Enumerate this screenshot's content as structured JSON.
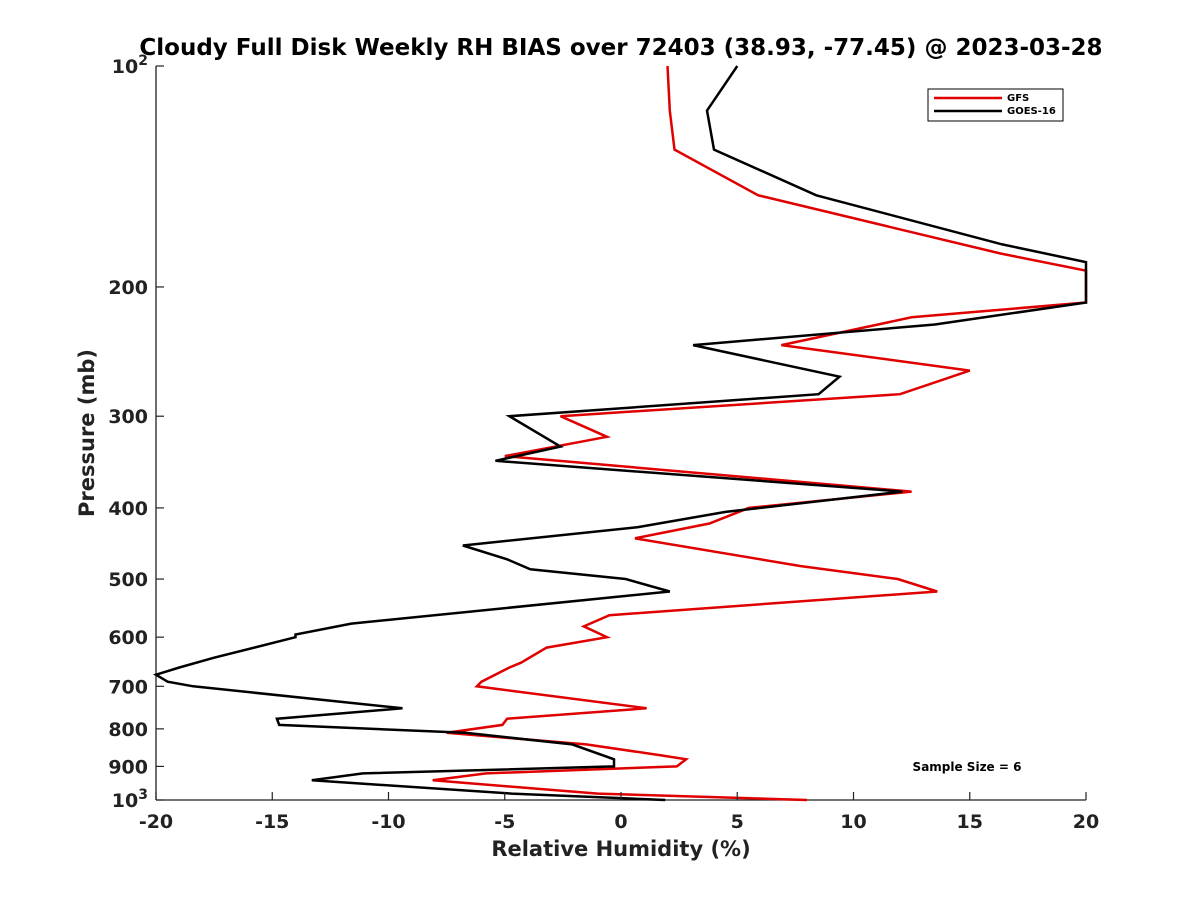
{
  "chart_data": {
    "type": "line",
    "title": "Cloudy Full Disk Weekly RH BIAS over 72403 (38.93, -77.45) @ 2023-03-28",
    "xlabel": "Relative Humidity (%)",
    "ylabel": "Pressure (mb)",
    "xlim": [
      -20,
      20
    ],
    "ylim": [
      1000,
      100
    ],
    "yscale": "log",
    "ytick_values": [
      100,
      200,
      300,
      400,
      500,
      600,
      700,
      800,
      900,
      1000
    ],
    "xtick_values": [
      -20,
      -15,
      -10,
      -5,
      0,
      5,
      10,
      15,
      20
    ],
    "y_base_ticks": {
      "100": {
        "base": "10",
        "exp": "2"
      },
      "1000": {
        "base": "10",
        "exp": "3"
      }
    },
    "ytick_labels": [
      "",
      "200",
      "300",
      "400",
      "500",
      "600",
      "700",
      "800",
      "900",
      ""
    ],
    "xtick_labels": [
      "-20",
      "-15",
      "-10",
      "-5",
      "0",
      "5",
      "10",
      "15",
      "20"
    ],
    "grid": false,
    "legend_position": "top-right",
    "annotation": "Sample Size = 6",
    "series": [
      {
        "name": "GFS",
        "color": "#e00000",
        "points": [
          [
            2.0,
            100
          ],
          [
            2.1,
            115
          ],
          [
            2.3,
            130
          ],
          [
            5.9,
            150
          ],
          [
            16.3,
            180
          ],
          [
            20.0,
            190
          ],
          [
            20.0,
            210
          ],
          [
            12.5,
            220
          ],
          [
            6.9,
            240
          ],
          [
            15.0,
            260
          ],
          [
            12.0,
            280
          ],
          [
            -2.6,
            300
          ],
          [
            -0.6,
            320
          ],
          [
            -5.0,
            340
          ],
          [
            12.5,
            380
          ],
          [
            5.5,
            400
          ],
          [
            3.8,
            420
          ],
          [
            0.6,
            440
          ],
          [
            7.7,
            480
          ],
          [
            11.9,
            500
          ],
          [
            13.6,
            520
          ],
          [
            -0.5,
            560
          ],
          [
            -1.6,
            580
          ],
          [
            -0.6,
            600
          ],
          [
            -3.2,
            620
          ],
          [
            -4.3,
            650
          ],
          [
            -4.8,
            660
          ],
          [
            -6.0,
            690
          ],
          [
            -6.2,
            700
          ],
          [
            1.1,
            750
          ],
          [
            -4.9,
            775
          ],
          [
            -5.1,
            790
          ],
          [
            -7.5,
            810
          ],
          [
            -1.5,
            840
          ],
          [
            1.8,
            870
          ],
          [
            2.8,
            880
          ],
          [
            2.4,
            900
          ],
          [
            -5.8,
            920
          ],
          [
            -8.1,
            940
          ],
          [
            -1.0,
            980
          ],
          [
            8.0,
            1000
          ]
        ]
      },
      {
        "name": "GOES-16",
        "color": "#000000",
        "points": [
          [
            5.0,
            100
          ],
          [
            3.7,
            115
          ],
          [
            4.0,
            130
          ],
          [
            8.4,
            150
          ],
          [
            16.4,
            175
          ],
          [
            20.0,
            185
          ],
          [
            20.0,
            210
          ],
          [
            13.5,
            225
          ],
          [
            3.1,
            240
          ],
          [
            9.4,
            265
          ],
          [
            8.5,
            280
          ],
          [
            -4.8,
            300
          ],
          [
            -2.6,
            330
          ],
          [
            -5.4,
            345
          ],
          [
            12.1,
            380
          ],
          [
            4.5,
            405
          ],
          [
            0.7,
            425
          ],
          [
            -6.8,
            450
          ],
          [
            -4.9,
            470
          ],
          [
            -3.9,
            485
          ],
          [
            0.2,
            500
          ],
          [
            2.1,
            520
          ],
          [
            -11.6,
            575
          ],
          [
            -14.0,
            595
          ],
          [
            -14.0,
            600
          ],
          [
            -17.5,
            640
          ],
          [
            -19.0,
            660
          ],
          [
            -20.0,
            675
          ],
          [
            -19.5,
            690
          ],
          [
            -18.4,
            700
          ],
          [
            -9.4,
            750
          ],
          [
            -14.8,
            775
          ],
          [
            -14.7,
            790
          ],
          [
            -6.7,
            810
          ],
          [
            -2.1,
            840
          ],
          [
            -0.3,
            880
          ],
          [
            -0.3,
            900
          ],
          [
            -11.1,
            920
          ],
          [
            -13.3,
            940
          ],
          [
            -4.7,
            980
          ],
          [
            1.9,
            1000
          ]
        ]
      }
    ]
  }
}
